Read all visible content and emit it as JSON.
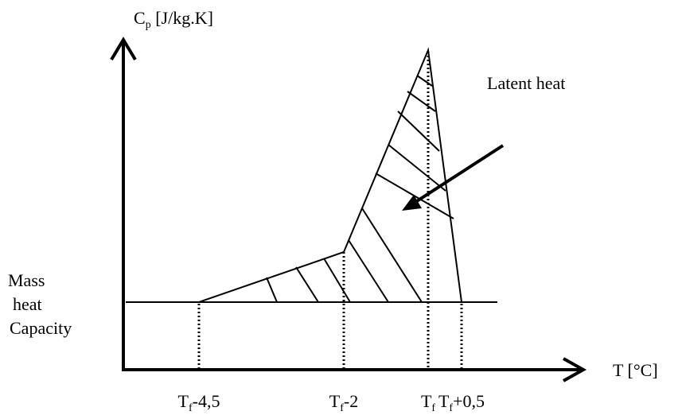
{
  "y_axis_label": {
    "symbol": "C",
    "subscript": "p",
    "unit": " [J/kg.K]"
  },
  "x_axis_label": "T [°C]",
  "annotation": "Latent heat",
  "baseline_label": [
    "Mass",
    "heat",
    "Capacity"
  ],
  "x_ticks": [
    {
      "symbol": "T",
      "subscript": "f",
      "suffix": "-4,5"
    },
    {
      "symbol": "T",
      "subscript": "f",
      "suffix": "-2"
    },
    {
      "symbol": "T",
      "subscript": "f"
    },
    {
      "symbol": "T",
      "subscript": "f",
      "suffix": "+0,5"
    }
  ]
}
